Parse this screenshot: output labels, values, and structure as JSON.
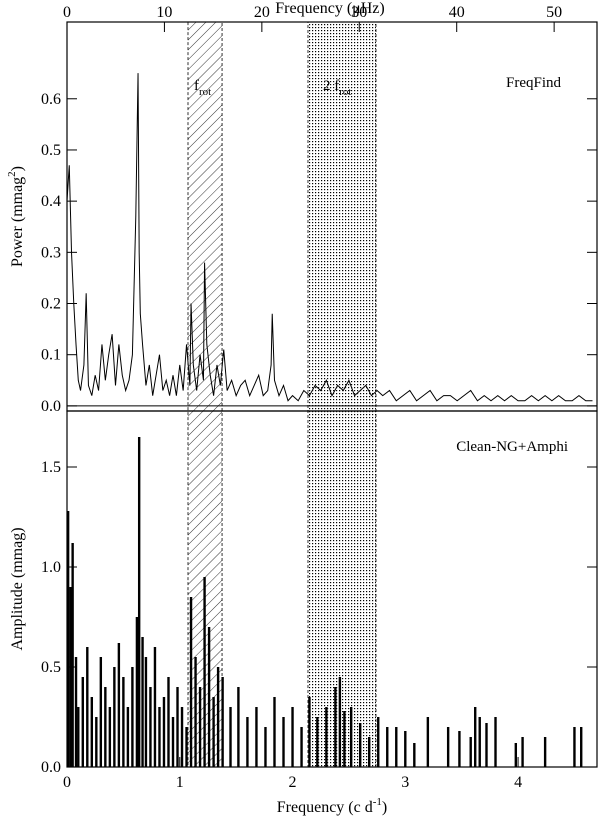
{
  "chart_data": [
    {
      "type": "line",
      "x2label": "Frequency (μHz)",
      "x2lim": [
        0,
        54.4
      ],
      "x2ticks": [
        0,
        10,
        20,
        30,
        40,
        50
      ],
      "ylabel": {
        "text": "Power (mmag",
        "sup": "2",
        "close": ")"
      },
      "annotation": "FreqFind",
      "xlim": [
        0,
        4.7
      ],
      "ylim": [
        -0.01,
        0.75
      ],
      "yticks": [
        {
          "value": 0,
          "label": "0.0"
        },
        0.1,
        0.2,
        0.3,
        0.4,
        0.5,
        0.6
      ],
      "color": "#000000",
      "bands": [
        {
          "range": [
            1.073,
            1.375
          ],
          "fill": "hatch",
          "label": {
            "text": "f",
            "sub": "rot"
          }
        },
        {
          "range": [
            2.137,
            2.74
          ],
          "fill": "dots",
          "label": {
            "text": "2 f",
            "sub": "rot"
          }
        }
      ],
      "x": [
        0,
        0.02,
        0.04,
        0.06,
        0.08,
        0.1,
        0.12,
        0.15,
        0.17,
        0.19,
        0.22,
        0.25,
        0.28,
        0.31,
        0.34,
        0.37,
        0.4,
        0.43,
        0.46,
        0.49,
        0.52,
        0.55,
        0.58,
        0.61,
        0.63,
        0.64,
        0.65,
        0.67,
        0.7,
        0.73,
        0.76,
        0.79,
        0.82,
        0.85,
        0.88,
        0.91,
        0.94,
        0.97,
        1.0,
        1.03,
        1.06,
        1.09,
        1.1,
        1.12,
        1.15,
        1.18,
        1.21,
        1.22,
        1.24,
        1.27,
        1.3,
        1.33,
        1.36,
        1.39,
        1.42,
        1.46,
        1.5,
        1.54,
        1.58,
        1.62,
        1.66,
        1.7,
        1.74,
        1.78,
        1.81,
        1.82,
        1.84,
        1.88,
        1.92,
        1.96,
        2.0,
        2.05,
        2.1,
        2.15,
        2.2,
        2.25,
        2.3,
        2.35,
        2.4,
        2.45,
        2.5,
        2.55,
        2.6,
        2.65,
        2.7,
        2.75,
        2.8,
        2.86,
        2.92,
        2.98,
        3.04,
        3.1,
        3.16,
        3.22,
        3.28,
        3.34,
        3.4,
        3.46,
        3.52,
        3.58,
        3.64,
        3.7,
        3.76,
        3.82,
        3.88,
        3.94,
        4.0,
        4.06,
        4.12,
        4.18,
        4.24,
        4.3,
        4.36,
        4.42,
        4.48,
        4.54,
        4.6,
        4.66
      ],
      "values": [
        0.4,
        0.47,
        0.3,
        0.2,
        0.12,
        0.05,
        0.03,
        0.08,
        0.22,
        0.04,
        0.02,
        0.06,
        0.03,
        0.12,
        0.05,
        0.1,
        0.14,
        0.04,
        0.12,
        0.06,
        0.03,
        0.05,
        0.1,
        0.37,
        0.65,
        0.3,
        0.18,
        0.12,
        0.04,
        0.08,
        0.02,
        0.06,
        0.1,
        0.03,
        0.05,
        0.02,
        0.06,
        0.02,
        0.08,
        0.03,
        0.12,
        0.04,
        0.2,
        0.08,
        0.03,
        0.1,
        0.05,
        0.28,
        0.12,
        0.06,
        0.02,
        0.08,
        0.04,
        0.11,
        0.03,
        0.05,
        0.02,
        0.04,
        0.05,
        0.02,
        0.04,
        0.06,
        0.02,
        0.03,
        0.08,
        0.18,
        0.05,
        0.02,
        0.04,
        0.01,
        0.02,
        0.01,
        0.03,
        0.02,
        0.04,
        0.03,
        0.05,
        0.02,
        0.04,
        0.03,
        0.05,
        0.02,
        0.03,
        0.04,
        0.02,
        0.03,
        0.02,
        0.03,
        0.01,
        0.02,
        0.03,
        0.01,
        0.02,
        0.03,
        0.01,
        0.02,
        0.02,
        0.01,
        0.02,
        0.03,
        0.01,
        0.02,
        0.01,
        0.02,
        0.01,
        0.02,
        0.01,
        0.01,
        0.02,
        0.01,
        0.02,
        0.01,
        0.02,
        0.01,
        0.01,
        0.02,
        0.01,
        0.01
      ]
    },
    {
      "type": "bar",
      "xlabel": {
        "text": "Frequency (c d",
        "sup": "-1",
        "close": ")"
      },
      "ylabel": {
        "text": "Amplitude (mmag)"
      },
      "annotation": "Clean-NG+Amphi",
      "xlim": [
        0,
        4.7
      ],
      "xticks": [
        0,
        1,
        2,
        3,
        4
      ],
      "ylim": [
        0,
        1.78
      ],
      "yticks": [
        {
          "value": 0,
          "label": "0.0"
        },
        0.5,
        {
          "value": 1,
          "label": "1.0"
        },
        1.5
      ],
      "color": "#000000",
      "x": [
        0.01,
        0.03,
        0.05,
        0.08,
        0.1,
        0.14,
        0.18,
        0.22,
        0.26,
        0.3,
        0.34,
        0.38,
        0.42,
        0.46,
        0.5,
        0.54,
        0.58,
        0.62,
        0.64,
        0.67,
        0.7,
        0.74,
        0.78,
        0.82,
        0.86,
        0.9,
        0.94,
        0.98,
        1.02,
        1.06,
        1.1,
        1.14,
        1.18,
        1.22,
        1.26,
        1.3,
        1.34,
        1.38,
        1.45,
        1.52,
        1.6,
        1.68,
        1.76,
        1.84,
        1.92,
        2.0,
        2.08,
        2.15,
        2.22,
        2.3,
        2.38,
        2.42,
        2.46,
        2.52,
        2.6,
        2.68,
        2.76,
        2.84,
        2.92,
        3.0,
        3.08,
        3.2,
        3.38,
        3.48,
        3.58,
        3.62,
        3.66,
        3.72,
        3.8,
        3.98,
        4.04,
        4.24,
        4.5,
        4.56
      ],
      "values": [
        1.28,
        0.9,
        1.12,
        0.55,
        0.3,
        0.45,
        0.6,
        0.35,
        0.25,
        0.55,
        0.4,
        0.3,
        0.5,
        0.62,
        0.45,
        0.3,
        0.5,
        0.75,
        1.65,
        0.65,
        0.55,
        0.4,
        0.6,
        0.3,
        0.35,
        0.45,
        0.25,
        0.4,
        0.3,
        0.2,
        0.85,
        0.55,
        0.4,
        0.95,
        0.7,
        0.35,
        0.5,
        0.45,
        0.3,
        0.4,
        0.25,
        0.3,
        0.2,
        0.35,
        0.25,
        0.3,
        0.2,
        0.35,
        0.25,
        0.3,
        0.4,
        0.45,
        0.28,
        0.3,
        0.22,
        0.15,
        0.25,
        0.2,
        0.2,
        0.18,
        0.12,
        0.25,
        0.2,
        0.18,
        0.15,
        0.3,
        0.25,
        0.22,
        0.25,
        0.12,
        0.15,
        0.15,
        0.2,
        0.2
      ]
    }
  ]
}
